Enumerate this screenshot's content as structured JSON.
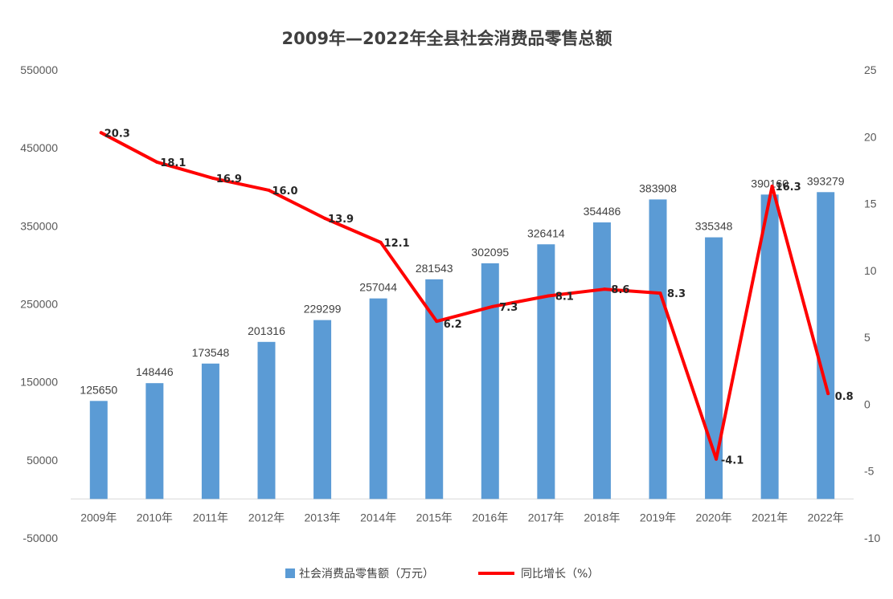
{
  "chart_data": {
    "type": "bar+line",
    "title": "2009年—2022年全县社会消费品零售总额",
    "categories": [
      "2009年",
      "2010年",
      "2011年",
      "2012年",
      "2013年",
      "2014年",
      "2015年",
      "2016年",
      "2017年",
      "2018年",
      "2019年",
      "2020年",
      "2021年",
      "2022年"
    ],
    "series": [
      {
        "name": "社会消费品零售额（万元）",
        "type": "bar",
        "axis": "left",
        "color": "#5b9bd5",
        "values": [
          125650,
          148446,
          173548,
          201316,
          229299,
          257044,
          281543,
          302095,
          326414,
          354486,
          383908,
          335348,
          390160,
          393279
        ],
        "labels": [
          "125650",
          "148446",
          "173548",
          "201316",
          "229299",
          "257044",
          "281543",
          "302095",
          "326414",
          "354486",
          "383908",
          "335348",
          "390160",
          "393279"
        ]
      },
      {
        "name": "同比增长（%）",
        "type": "line",
        "axis": "right",
        "color": "#ff0000",
        "values": [
          20.3,
          18.1,
          16.9,
          16.0,
          13.9,
          12.1,
          6.2,
          7.3,
          8.1,
          8.6,
          8.3,
          -4.1,
          16.3,
          0.8
        ],
        "labels": [
          "20.3",
          "18.1",
          "16.9",
          "16.0",
          "13.9",
          "12.1",
          "6.2",
          "7.3",
          "8.1",
          "8.6",
          "8.3",
          "-4.1",
          "16.3",
          "0.8"
        ]
      }
    ],
    "y_left": {
      "min": -50000,
      "max": 550000,
      "baseline": 0,
      "tick_labels": [
        "550000",
        "450000",
        "350000",
        "250000",
        "150000",
        "50000",
        "-50000"
      ],
      "tick_values": [
        550000,
        450000,
        350000,
        250000,
        150000,
        50000,
        -50000
      ]
    },
    "y_right": {
      "min": -10,
      "max": 25,
      "tick_labels": [
        "25",
        "20",
        "15",
        "10",
        "5",
        "0",
        "-5",
        "-10"
      ],
      "tick_values": [
        25,
        20,
        15,
        10,
        5,
        0,
        -5,
        -10
      ]
    },
    "grid": false,
    "legend_position": "bottom"
  }
}
